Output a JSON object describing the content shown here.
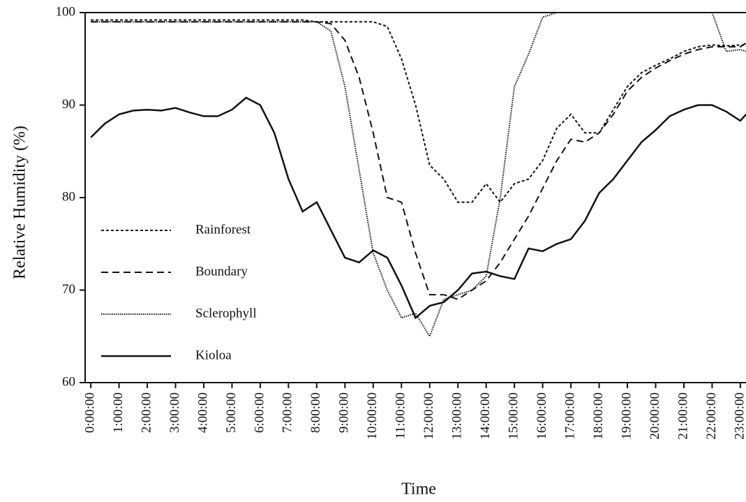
{
  "chart_data": {
    "type": "line",
    "x_label": "Time",
    "y_label": "Relative Humidity (%)",
    "x": [
      0,
      0.5,
      1,
      1.5,
      2,
      2.5,
      3,
      3.5,
      4,
      4.5,
      5,
      5.5,
      6,
      6.5,
      7,
      7.5,
      8,
      8.5,
      9,
      9.5,
      10,
      10.5,
      11,
      11.5,
      12,
      12.5,
      13,
      13.5,
      14,
      14.5,
      15,
      15.5,
      16,
      16.5,
      17,
      17.5,
      18,
      18.5,
      19,
      19.5,
      20,
      20.5,
      21,
      21.5,
      22,
      22.5,
      23,
      23.2
    ],
    "series": [
      {
        "name": "Rainforest",
        "color": "#111111",
        "dash": "4,3",
        "values": [
          99.2,
          99.2,
          99.2,
          99.2,
          99.2,
          99.2,
          99.2,
          99.2,
          99.2,
          99.2,
          99.2,
          99.2,
          99.2,
          99.2,
          99.2,
          99.2,
          99,
          99,
          99,
          99,
          99,
          98.5,
          95,
          90,
          83.5,
          82,
          79.5,
          79.5,
          81.5,
          79.5,
          81.5,
          82,
          84,
          87.5,
          89,
          87,
          87,
          89.5,
          92,
          93.5,
          94.3,
          95,
          95.8,
          96.3,
          96.5,
          96.4,
          96.5,
          96.5
        ]
      },
      {
        "name": "Boundary",
        "color": "#111111",
        "dash": "10,6",
        "values": [
          99,
          99,
          99,
          99,
          99,
          99,
          99,
          99,
          99,
          99,
          99,
          99,
          99,
          99,
          99,
          99,
          99,
          98.8,
          97,
          93,
          87,
          80,
          79.5,
          74,
          69.5,
          69.5,
          69,
          70,
          71,
          73,
          75.5,
          78,
          81,
          84,
          86.3,
          86,
          87,
          89,
          91.5,
          93,
          94,
          94.8,
          95.5,
          96,
          96.3,
          96.3,
          96.3,
          96.7
        ]
      },
      {
        "name": "Sclerophyll",
        "color": "#111111",
        "dash": "1.5,1.5",
        "values": [
          99,
          99,
          99,
          99,
          99,
          99,
          99,
          99,
          99,
          99,
          99,
          99,
          99,
          99,
          99,
          99,
          99,
          98,
          92,
          83,
          74,
          70,
          67,
          67.5,
          65,
          69,
          69.5,
          70,
          71.5,
          80,
          92,
          95.5,
          99.5,
          100,
          100,
          100,
          100,
          100,
          100,
          100,
          100,
          100,
          100,
          100,
          100,
          95.8,
          96,
          95.8
        ]
      },
      {
        "name": "Kioloa",
        "color": "#111111",
        "dash": "none",
        "values": [
          86.5,
          88,
          89,
          89.4,
          89.5,
          89.4,
          89.7,
          89.2,
          88.8,
          88.8,
          89.5,
          90.8,
          90,
          87,
          82,
          78.5,
          79.5,
          76.5,
          73.5,
          73,
          74.3,
          73.5,
          70.5,
          67,
          68.3,
          68.7,
          70,
          71.8,
          72,
          71.5,
          71.2,
          74.5,
          74.2,
          75,
          75.5,
          77.5,
          80.5,
          82,
          84,
          86,
          87.3,
          88.8,
          89.5,
          90,
          90,
          89.3,
          88.3,
          89
        ]
      }
    ],
    "xlim": [
      -0.2,
      23.2
    ],
    "xticks": [
      {
        "value": 0,
        "label": "0:00:00"
      },
      {
        "value": 1,
        "label": "1:00:00"
      },
      {
        "value": 2,
        "label": "2:00:00"
      },
      {
        "value": 3,
        "label": "3:00:00"
      },
      {
        "value": 4,
        "label": "4:00:00"
      },
      {
        "value": 5,
        "label": "5:00:00"
      },
      {
        "value": 6,
        "label": "6:00:00"
      },
      {
        "value": 7,
        "label": "7:00:00"
      },
      {
        "value": 8,
        "label": "8:00:00"
      },
      {
        "value": 9,
        "label": "9:00:00"
      },
      {
        "value": 10,
        "label": "10:00:00"
      },
      {
        "value": 11,
        "label": "11:00:00"
      },
      {
        "value": 12,
        "label": "12:00:00"
      },
      {
        "value": 13,
        "label": "13:00:00"
      },
      {
        "value": 14,
        "label": "14:00:00"
      },
      {
        "value": 15,
        "label": "15:00:00"
      },
      {
        "value": 16,
        "label": "16:00:00"
      },
      {
        "value": 17,
        "label": "17:00:00"
      },
      {
        "value": 18,
        "label": "18:00:00"
      },
      {
        "value": 19,
        "label": "19:00:00"
      },
      {
        "value": 20,
        "label": "20:00:00"
      },
      {
        "value": 21,
        "label": "21:00:00"
      },
      {
        "value": 22,
        "label": "22:00:00"
      },
      {
        "value": 23,
        "label": "23:00:00"
      }
    ],
    "ylim": [
      60,
      100
    ],
    "yticks": [
      60,
      70,
      80,
      90,
      100
    ],
    "grid": false
  }
}
